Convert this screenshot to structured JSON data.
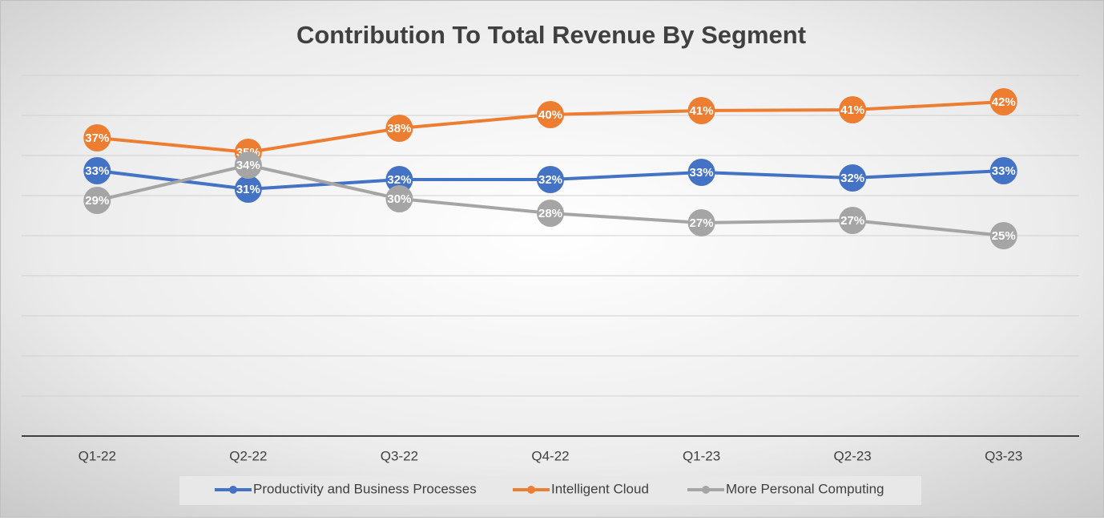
{
  "chart_data": {
    "type": "line",
    "title": "Contribution To Total Revenue By Segment",
    "categories": [
      "Q1-22",
      "Q2-22",
      "Q3-22",
      "Q4-22",
      "Q1-23",
      "Q2-23",
      "Q3-23"
    ],
    "series": [
      {
        "name": "Productivity and Business Processes",
        "color": "#4472c4",
        "values": [
          33.1,
          30.8,
          32.0,
          32.0,
          32.9,
          32.2,
          33.1
        ],
        "value_labels": [
          "33%",
          "31%",
          "32%",
          "32%",
          "33%",
          "32%",
          "33%"
        ]
      },
      {
        "name": "Intelligent Cloud",
        "color": "#ed7d31",
        "values": [
          37.2,
          35.4,
          38.4,
          40.1,
          40.6,
          40.7,
          41.7
        ],
        "value_labels": [
          "37%",
          "35%",
          "38%",
          "40%",
          "41%",
          "41%",
          "42%"
        ]
      },
      {
        "name": "More Personal Computing",
        "color": "#a5a5a5",
        "values": [
          29.4,
          33.8,
          29.6,
          27.8,
          26.6,
          26.9,
          25.0
        ],
        "value_labels": [
          "29%",
          "34%",
          "30%",
          "28%",
          "27%",
          "27%",
          "25%"
        ]
      }
    ],
    "ylim": [
      0,
      45
    ],
    "yticks": [
      0,
      5,
      10,
      15,
      20,
      25,
      30,
      35,
      40,
      45
    ],
    "grid": true,
    "legend": "bottom"
  }
}
